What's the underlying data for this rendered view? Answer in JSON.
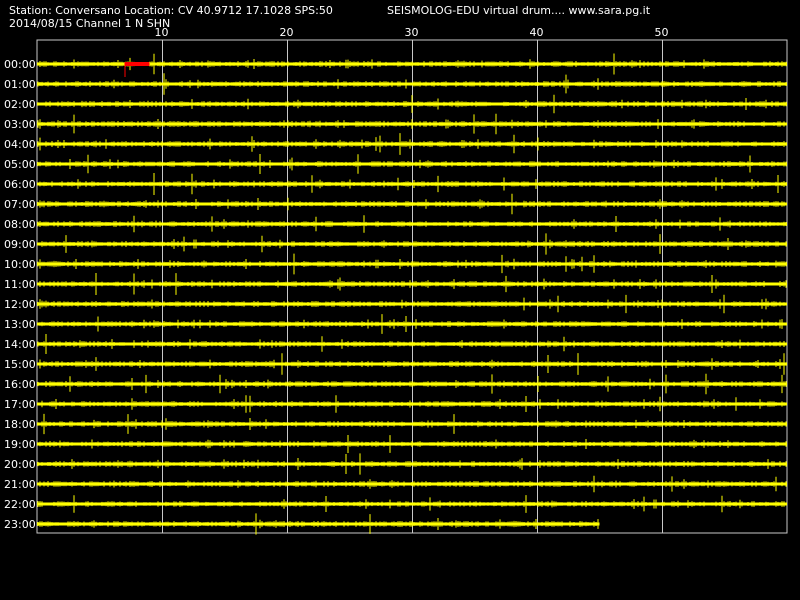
{
  "header": {
    "station_line": "Station: Conversano Location: CV 40.9712 17.1028 SPS:50",
    "date_channel_line": "2014/08/15  Channel 1 N SHN",
    "source_line": "SEISMOLOG-EDU virtual drum.... www.sara.pg.it"
  },
  "colors": {
    "background": "#000000",
    "trace": "#ffff00",
    "event_marker": "#ff0000",
    "grid": "#c8c8c8",
    "text": "#ffffff"
  },
  "chart_data": {
    "type": "line",
    "title": "",
    "xlabel": "",
    "ylabel": "",
    "xlim": [
      0,
      60
    ],
    "x_ticks": [
      10,
      20,
      30,
      40,
      50
    ],
    "grid": true,
    "rows": [
      {
        "label": "00:00",
        "end_minute": 60
      },
      {
        "label": "01:00",
        "end_minute": 60
      },
      {
        "label": "02:00",
        "end_minute": 60
      },
      {
        "label": "03:00",
        "end_minute": 60
      },
      {
        "label": "04:00",
        "end_minute": 60
      },
      {
        "label": "05:00",
        "end_minute": 60
      },
      {
        "label": "06:00",
        "end_minute": 60
      },
      {
        "label": "07:00",
        "end_minute": 60
      },
      {
        "label": "08:00",
        "end_minute": 60
      },
      {
        "label": "09:00",
        "end_minute": 60
      },
      {
        "label": "10:00",
        "end_minute": 60
      },
      {
        "label": "11:00",
        "end_minute": 60
      },
      {
        "label": "12:00",
        "end_minute": 60
      },
      {
        "label": "13:00",
        "end_minute": 60
      },
      {
        "label": "14:00",
        "end_minute": 60
      },
      {
        "label": "15:00",
        "end_minute": 60
      },
      {
        "label": "16:00",
        "end_minute": 60
      },
      {
        "label": "17:00",
        "end_minute": 60
      },
      {
        "label": "18:00",
        "end_minute": 60
      },
      {
        "label": "19:00",
        "end_minute": 60
      },
      {
        "label": "20:00",
        "end_minute": 60
      },
      {
        "label": "21:00",
        "end_minute": 60
      },
      {
        "label": "22:00",
        "end_minute": 60
      },
      {
        "label": "23:00",
        "end_minute": 45
      }
    ],
    "events": [
      {
        "row": 0,
        "start_minute": 7,
        "end_minute": 9,
        "color": "red"
      }
    ]
  }
}
